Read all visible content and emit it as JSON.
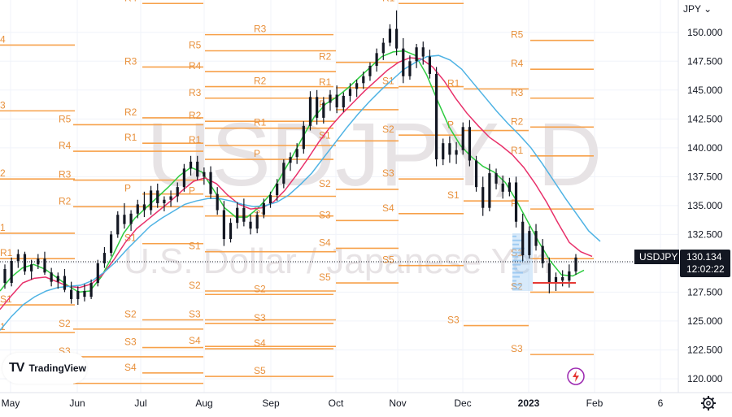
{
  "header": {
    "currency_label": "JPY",
    "currency_chevron": "chevron-down-icon"
  },
  "watermark": {
    "symbol": "USDJPY, D",
    "description": "U.S. Dollar / Japanese Yen"
  },
  "branding": {
    "logo_text": "TradingView",
    "logo_mark": "TV"
  },
  "price_badge": {
    "symbol": "USDJPY",
    "price": "130.134",
    "countdown": "12:02:22"
  },
  "colors": {
    "candles": "#131722",
    "pivot": "#f7a14a",
    "pivot_label": "#e8903b",
    "ma_fast": "#2ecc40",
    "ma_mid": "#e8306a",
    "ma_slow": "#4fb3e4",
    "support_line": "#e53935",
    "badge_bg": "#131722",
    "volume_profile": "#90c3f0"
  },
  "chart_data": {
    "type": "candlestick",
    "symbol": "USDJPY",
    "y_axis": {
      "ticks": [
        "150.000",
        "147.500",
        "145.000",
        "142.500",
        "140.000",
        "137.500",
        "135.000",
        "132.500",
        "130.000",
        "127.500",
        "125.000",
        "122.500",
        "120.000"
      ],
      "range": [
        118.8,
        152.8
      ]
    },
    "x_axis": {
      "ticks": [
        "May",
        "Jun",
        "Jul",
        "Aug",
        "Sep",
        "Oct",
        "Nov",
        "Dec",
        "2023",
        "Feb",
        "6"
      ]
    },
    "candles_ohlc": [
      [
        129.5,
        129.9,
        127.8,
        128.3
      ],
      [
        128.3,
        130.5,
        128.0,
        130.2
      ],
      [
        130.2,
        131.2,
        129.6,
        130.8
      ],
      [
        130.8,
        131.0,
        129.0,
        129.3
      ],
      [
        129.3,
        130.3,
        128.6,
        129.9
      ],
      [
        129.9,
        130.8,
        129.5,
        130.4
      ],
      [
        130.4,
        131.0,
        129.0,
        129.2
      ],
      [
        129.2,
        129.6,
        128.0,
        128.4
      ],
      [
        128.4,
        129.2,
        127.8,
        128.9
      ],
      [
        128.9,
        129.5,
        127.5,
        127.7
      ],
      [
        127.7,
        128.4,
        126.5,
        126.9
      ],
      [
        126.9,
        128.0,
        126.4,
        127.6
      ],
      [
        127.6,
        128.2,
        126.7,
        127.1
      ],
      [
        127.1,
        128.6,
        126.9,
        128.3
      ],
      [
        128.3,
        130.3,
        128.0,
        130.0
      ],
      [
        130.0,
        131.4,
        129.6,
        130.9
      ],
      [
        130.9,
        132.8,
        130.6,
        132.5
      ],
      [
        132.5,
        134.5,
        132.2,
        134.2
      ],
      [
        134.2,
        135.2,
        133.0,
        133.4
      ],
      [
        133.4,
        134.6,
        132.8,
        134.3
      ],
      [
        134.3,
        135.5,
        133.9,
        135.1
      ],
      [
        135.1,
        136.2,
        134.0,
        134.6
      ],
      [
        134.6,
        136.7,
        134.2,
        136.3
      ],
      [
        136.3,
        136.9,
        134.8,
        135.2
      ],
      [
        135.2,
        135.8,
        134.5,
        135.5
      ],
      [
        135.5,
        136.3,
        134.9,
        135.8
      ],
      [
        135.8,
        137.0,
        135.3,
        136.6
      ],
      [
        136.6,
        138.6,
        136.2,
        138.2
      ],
      [
        138.2,
        139.3,
        137.6,
        138.8
      ],
      [
        138.8,
        139.3,
        137.2,
        137.5
      ],
      [
        137.5,
        138.3,
        136.8,
        137.9
      ],
      [
        137.9,
        138.4,
        135.6,
        136.0
      ],
      [
        136.0,
        136.6,
        134.2,
        134.6
      ],
      [
        134.6,
        135.4,
        131.5,
        132.1
      ],
      [
        132.1,
        133.9,
        131.8,
        133.5
      ],
      [
        133.5,
        135.3,
        133.0,
        134.8
      ],
      [
        134.8,
        135.6,
        133.2,
        133.6
      ],
      [
        133.6,
        134.2,
        132.5,
        133.0
      ],
      [
        133.0,
        134.5,
        132.6,
        134.2
      ],
      [
        134.2,
        135.6,
        133.9,
        135.2
      ],
      [
        135.2,
        136.2,
        134.8,
        135.9
      ],
      [
        135.9,
        137.3,
        135.4,
        136.9
      ],
      [
        136.9,
        139.0,
        136.5,
        138.7
      ],
      [
        138.7,
        139.6,
        138.0,
        139.2
      ],
      [
        139.2,
        140.4,
        138.6,
        139.9
      ],
      [
        139.9,
        142.3,
        139.5,
        141.9
      ],
      [
        141.9,
        144.9,
        141.5,
        144.4
      ],
      [
        144.4,
        145.0,
        142.0,
        142.6
      ],
      [
        142.6,
        144.4,
        142.1,
        143.9
      ],
      [
        143.9,
        145.0,
        143.2,
        144.6
      ],
      [
        144.6,
        145.4,
        143.0,
        143.5
      ],
      [
        143.5,
        144.8,
        143.1,
        144.5
      ],
      [
        144.5,
        145.6,
        144.0,
        145.1
      ],
      [
        145.1,
        145.9,
        144.4,
        145.6
      ],
      [
        145.6,
        146.6,
        145.1,
        146.2
      ],
      [
        146.2,
        147.4,
        145.8,
        147.1
      ],
      [
        147.1,
        148.6,
        146.6,
        148.2
      ],
      [
        148.2,
        149.5,
        147.6,
        149.1
      ],
      [
        149.1,
        150.7,
        148.8,
        150.3
      ],
      [
        150.3,
        151.9,
        148.0,
        148.6
      ],
      [
        148.6,
        149.5,
        145.6,
        146.2
      ],
      [
        146.2,
        148.0,
        145.9,
        147.5
      ],
      [
        147.5,
        149.0,
        146.9,
        148.7
      ],
      [
        148.7,
        149.2,
        147.2,
        147.9
      ],
      [
        147.9,
        148.5,
        146.0,
        146.4
      ],
      [
        146.4,
        147.0,
        138.4,
        139.0
      ],
      [
        139.0,
        140.8,
        138.5,
        140.4
      ],
      [
        140.4,
        141.0,
        138.7,
        139.4
      ],
      [
        139.4,
        140.5,
        138.6,
        139.8
      ],
      [
        139.8,
        142.2,
        139.4,
        141.8
      ],
      [
        141.8,
        142.4,
        138.4,
        138.9
      ],
      [
        138.9,
        139.3,
        136.2,
        136.6
      ],
      [
        136.6,
        137.5,
        134.1,
        134.8
      ],
      [
        134.8,
        138.6,
        134.5,
        137.8
      ],
      [
        137.8,
        138.2,
        136.4,
        136.9
      ],
      [
        136.9,
        137.6,
        135.6,
        136.2
      ],
      [
        136.2,
        137.4,
        135.8,
        137.0
      ],
      [
        137.0,
        137.5,
        133.1,
        133.6
      ],
      [
        133.6,
        134.3,
        130.2,
        130.7
      ],
      [
        130.7,
        133.2,
        130.4,
        132.8
      ],
      [
        132.8,
        133.4,
        131.1,
        131.5
      ],
      [
        131.5,
        132.1,
        129.6,
        130.0
      ],
      [
        130.0,
        130.5,
        127.4,
        128.3
      ],
      [
        128.3,
        129.2,
        127.6,
        128.8
      ],
      [
        128.8,
        129.4,
        128.0,
        128.5
      ],
      [
        128.5,
        129.9,
        127.9,
        129.3
      ],
      [
        129.3,
        130.8,
        129.0,
        130.5
      ]
    ],
    "moving_averages": [
      {
        "role": "fast",
        "values": [
          127.6,
          128.8,
          129.6,
          129.9,
          129.5,
          128.8,
          128.1,
          127.5,
          127.6,
          128.8,
          130.6,
          132.6,
          133.9,
          134.8,
          135.7,
          136.6,
          137.6,
          138.3,
          137.9,
          136.4,
          134.8,
          134.0,
          134.0,
          134.8,
          135.9,
          137.5,
          139.2,
          141.0,
          142.7,
          143.8,
          144.4,
          145.2,
          146.1,
          147.0,
          147.9,
          148.3,
          148.4,
          148.0,
          146.3,
          144.0,
          141.8,
          140.2,
          139.2,
          138.4,
          137.9,
          137.0,
          135.4,
          133.6,
          131.8,
          130.2,
          129.0,
          128.9,
          129.4
        ]
      },
      {
        "role": "mid",
        "values": [
          126.0,
          127.2,
          128.3,
          128.7,
          128.8,
          128.4,
          128.0,
          127.9,
          128.2,
          129.0,
          130.3,
          131.8,
          133.0,
          133.8,
          134.6,
          135.4,
          136.3,
          137.1,
          137.4,
          136.9,
          135.9,
          135.1,
          134.7,
          134.8,
          135.3,
          136.3,
          137.6,
          139.0,
          140.5,
          141.8,
          142.9,
          143.9,
          144.9,
          145.8,
          146.7,
          147.4,
          147.8,
          147.7,
          147.0,
          145.8,
          144.3,
          143.0,
          141.9,
          140.9,
          140.2,
          139.4,
          138.3,
          136.9,
          135.3,
          133.5,
          131.8,
          131.0,
          130.6
        ]
      },
      {
        "role": "slow",
        "values": [
          124.2,
          125.4,
          126.4,
          127.1,
          127.6,
          127.9,
          128.0,
          128.1,
          128.5,
          129.2,
          130.1,
          131.2,
          132.2,
          133.2,
          133.9,
          134.5,
          135.1,
          135.4,
          135.6,
          135.6,
          135.4,
          135.1,
          134.9,
          135.0,
          135.3,
          135.9,
          136.8,
          137.8,
          139.1,
          140.4,
          141.7,
          142.9,
          144.0,
          145.0,
          145.9,
          146.8,
          147.4,
          147.9,
          148.0,
          147.6,
          146.8,
          145.6,
          144.4,
          143.2,
          142.1,
          141.1,
          140.0,
          138.6,
          137.1,
          135.6,
          134.2,
          132.8,
          131.9
        ]
      }
    ],
    "pivot_levels": [
      {
        "name": "4",
        "value": 148.9
      },
      {
        "name": "3",
        "value": 143.2
      },
      {
        "name": "2",
        "value": 137.3
      },
      {
        "name": "1",
        "value": 132.6
      },
      {
        "name": "R1",
        "value": 130.4
      },
      {
        "name": "S1",
        "value": 126.4
      },
      {
        "name": "1",
        "value": 124.0
      },
      {
        "name": "R5",
        "value": 142.0
      },
      {
        "name": "R4",
        "value": 139.7
      },
      {
        "name": "R3",
        "value": 137.2
      },
      {
        "name": "R2",
        "value": 134.9
      },
      {
        "name": "S2",
        "value": 124.3
      },
      {
        "name": "S3",
        "value": 121.9
      },
      {
        "name": "S4",
        "value": 119.6
      },
      {
        "name": "R4",
        "value": 152.5
      },
      {
        "name": "R3",
        "value": 147.0
      },
      {
        "name": "R2",
        "value": 142.6
      },
      {
        "name": "R1",
        "value": 140.4
      },
      {
        "name": "P",
        "value": 136.0
      },
      {
        "name": "S1",
        "value": 131.7
      },
      {
        "name": "S2",
        "value": 125.1
      },
      {
        "name": "S3",
        "value": 122.7
      },
      {
        "name": "S4",
        "value": 120.5
      },
      {
        "name": "R5",
        "value": 148.4
      },
      {
        "name": "R4",
        "value": 146.6
      },
      {
        "name": "R3",
        "value": 144.3
      },
      {
        "name": "R2",
        "value": 142.3
      },
      {
        "name": "R1",
        "value": 140.2
      },
      {
        "name": "P",
        "value": 135.8
      },
      {
        "name": "S1",
        "value": 131.0
      },
      {
        "name": "S2",
        "value": 127.6
      },
      {
        "name": "S3",
        "value": 125.1
      },
      {
        "name": "S4",
        "value": 122.8
      },
      {
        "name": "R3",
        "value": 149.8
      },
      {
        "name": "R2",
        "value": 145.3
      },
      {
        "name": "R1",
        "value": 141.7
      },
      {
        "name": "P",
        "value": 139.0
      },
      {
        "name": "S1",
        "value": 134.1
      },
      {
        "name": "S2",
        "value": 127.3
      },
      {
        "name": "S3",
        "value": 124.8
      },
      {
        "name": "S4",
        "value": 122.6
      },
      {
        "name": "S5",
        "value": 120.2
      },
      {
        "name": "R2",
        "value": 147.4
      },
      {
        "name": "R1",
        "value": 145.2
      },
      {
        "name": "P",
        "value": 143.3
      },
      {
        "name": "S1",
        "value": 140.6
      },
      {
        "name": "S2",
        "value": 136.4
      },
      {
        "name": "S3",
        "value": 133.7
      },
      {
        "name": "S4",
        "value": 131.3
      },
      {
        "name": "S5",
        "value": 128.3
      },
      {
        "name": "R1",
        "value": 152.5
      },
      {
        "name": "S1",
        "value": 145.3
      },
      {
        "name": "S2",
        "value": 141.1
      },
      {
        "name": "S3",
        "value": 137.3
      },
      {
        "name": "S4",
        "value": 134.3
      },
      {
        "name": "S5",
        "value": 129.8
      },
      {
        "name": "R2",
        "value": 152.9
      },
      {
        "name": "R1",
        "value": 145.1
      },
      {
        "name": "P",
        "value": 141.5
      },
      {
        "name": "S1",
        "value": 135.4
      },
      {
        "name": "S3",
        "value": 124.6
      },
      {
        "name": "R5",
        "value": 149.3
      },
      {
        "name": "R4",
        "value": 146.8
      },
      {
        "name": "R3",
        "value": 144.3
      },
      {
        "name": "R2",
        "value": 141.8
      },
      {
        "name": "R1",
        "value": 139.3
      },
      {
        "name": "P",
        "value": 134.7
      },
      {
        "name": "S1",
        "value": 130.4
      },
      {
        "name": "S2",
        "value": 127.5
      },
      {
        "name": "S3",
        "value": 122.1
      }
    ],
    "support_level": 128.3
  }
}
